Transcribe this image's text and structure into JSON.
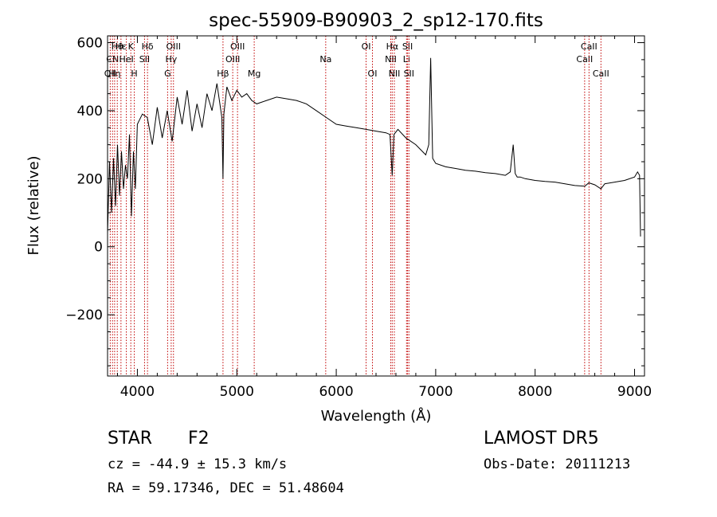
{
  "chart_data": {
    "type": "line",
    "title": "spec-55909-B90903_2_sp12-170.fits",
    "xlabel": "Wavelength (Å)",
    "ylabel": "Flux (relative)",
    "xlim": [
      3700,
      9100
    ],
    "ylim": [
      -380,
      620
    ],
    "xticks": [
      4000,
      5000,
      6000,
      7000,
      8000,
      9000
    ],
    "yticks": [
      -200,
      0,
      200,
      400,
      600
    ],
    "grid": false,
    "series": [
      {
        "color": "#000000",
        "x": [
          3700,
          3720,
          3740,
          3760,
          3780,
          3800,
          3820,
          3840,
          3860,
          3880,
          3900,
          3920,
          3940,
          3960,
          3980,
          4000,
          4050,
          4100,
          4150,
          4200,
          4250,
          4300,
          4350,
          4400,
          4450,
          4500,
          4550,
          4600,
          4650,
          4700,
          4750,
          4800,
          4850,
          4861,
          4870,
          4900,
          4950,
          5000,
          5050,
          5100,
          5150,
          5200,
          5300,
          5400,
          5500,
          5600,
          5700,
          5800,
          5900,
          6000,
          6100,
          6200,
          6300,
          6400,
          6500,
          6540,
          6563,
          6580,
          6620,
          6700,
          6800,
          6900,
          6930,
          6950,
          6970,
          7000,
          7100,
          7200,
          7300,
          7400,
          7500,
          7600,
          7700,
          7750,
          7780,
          7800,
          7820,
          7850,
          7900,
          8000,
          8100,
          8200,
          8300,
          8400,
          8500,
          8540,
          8600,
          8662,
          8700,
          8800,
          8900,
          9000,
          9030,
          9050,
          9060
        ],
        "y": [
          40,
          250,
          100,
          260,
          120,
          300,
          150,
          280,
          170,
          240,
          200,
          330,
          90,
          280,
          170,
          360,
          390,
          380,
          300,
          410,
          320,
          400,
          310,
          440,
          360,
          460,
          340,
          420,
          350,
          450,
          400,
          480,
          380,
          200,
          390,
          470,
          430,
          460,
          440,
          450,
          430,
          420,
          430,
          440,
          435,
          430,
          420,
          400,
          380,
          360,
          355,
          350,
          345,
          340,
          335,
          330,
          210,
          330,
          345,
          320,
          300,
          270,
          300,
          555,
          260,
          245,
          235,
          230,
          225,
          222,
          218,
          215,
          210,
          220,
          300,
          215,
          205,
          205,
          200,
          195,
          192,
          190,
          185,
          180,
          178,
          188,
          182,
          170,
          185,
          190,
          195,
          205,
          220,
          210,
          30
        ]
      }
    ],
    "line_markers": [
      {
        "wl": 3727,
        "label": "OII",
        "row": 3
      },
      {
        "wl": 3750,
        "label": "CN",
        "row": 2
      },
      {
        "wl": 3771,
        "label": "Hη",
        "row": 3
      },
      {
        "wl": 3798,
        "label": "Hθ",
        "row": 1
      },
      {
        "wl": 3835,
        "label": "Hε",
        "row": 1
      },
      {
        "wl": 3889,
        "label": "HeI",
        "row": 2
      },
      {
        "wl": 3934,
        "label": "K",
        "row": 1
      },
      {
        "wl": 3969,
        "label": "H",
        "row": 3
      },
      {
        "wl": 4072,
        "label": "SII",
        "row": 2
      },
      {
        "wl": 4102,
        "label": "Hδ",
        "row": 1
      },
      {
        "wl": 4304,
        "label": "G",
        "row": 3
      },
      {
        "wl": 4340,
        "label": "Hγ",
        "row": 2
      },
      {
        "wl": 4363,
        "label": "OIII",
        "row": 1
      },
      {
        "wl": 4861,
        "label": "Hβ",
        "row": 3
      },
      {
        "wl": 4959,
        "label": "OIII",
        "row": 2
      },
      {
        "wl": 5007,
        "label": "OIII",
        "row": 1
      },
      {
        "wl": 5175,
        "label": "Mg",
        "row": 3
      },
      {
        "wl": 5894,
        "label": "Na",
        "row": 2
      },
      {
        "wl": 6300,
        "label": "OI",
        "row": 1
      },
      {
        "wl": 6364,
        "label": "OI",
        "row": 3
      },
      {
        "wl": 6548,
        "label": "NII",
        "row": 2
      },
      {
        "wl": 6563,
        "label": "Hα",
        "row": 1
      },
      {
        "wl": 6584,
        "label": "NII",
        "row": 3
      },
      {
        "wl": 6707,
        "label": "Li",
        "row": 2
      },
      {
        "wl": 6717,
        "label": "SII",
        "row": 1
      },
      {
        "wl": 6731,
        "label": "SII",
        "row": 3
      },
      {
        "wl": 8498,
        "label": "CaII",
        "row": 2
      },
      {
        "wl": 8542,
        "label": "CaII",
        "row": 1
      },
      {
        "wl": 8662,
        "label": "CaII",
        "row": 3
      }
    ],
    "marker_color": "#c00000"
  },
  "info": {
    "obj_class": "STAR",
    "subclass": "F2",
    "survey": "LAMOST  DR5",
    "cz": "cz = -44.9 ± 15.3 km/s",
    "obs_date": "Obs-Date: 20111213",
    "radec": "RA =  59.17346, DEC =  51.48604"
  }
}
